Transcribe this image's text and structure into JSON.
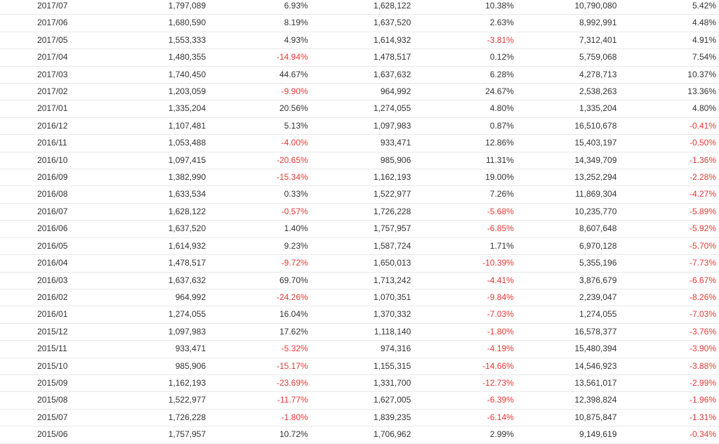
{
  "table": {
    "rows": [
      [
        "2017/07",
        "1,797,089",
        "6.93%",
        "1,628,122",
        "10.38%",
        "10,790,080",
        "5.42%"
      ],
      [
        "2017/06",
        "1,680,590",
        "8.19%",
        "1,637,520",
        "2.63%",
        "8,992,991",
        "4.48%"
      ],
      [
        "2017/05",
        "1,553,333",
        "4.93%",
        "1,614,932",
        "-3.81%",
        "7,312,401",
        "4.91%"
      ],
      [
        "2017/04",
        "1,480,355",
        "-14.94%",
        "1,478,517",
        "0.12%",
        "5,759,068",
        "7.54%"
      ],
      [
        "2017/03",
        "1,740,450",
        "44.67%",
        "1,637,632",
        "6.28%",
        "4,278,713",
        "10.37%"
      ],
      [
        "2017/02",
        "1,203,059",
        "-9.90%",
        "964,992",
        "24.67%",
        "2,538,263",
        "13.36%"
      ],
      [
        "2017/01",
        "1,335,204",
        "20.56%",
        "1,274,055",
        "4.80%",
        "1,335,204",
        "4.80%"
      ],
      [
        "2016/12",
        "1,107,481",
        "5.13%",
        "1,097,983",
        "0.87%",
        "16,510,678",
        "-0.41%"
      ],
      [
        "2016/11",
        "1,053,488",
        "-4.00%",
        "933,471",
        "12.86%",
        "15,403,197",
        "-0.50%"
      ],
      [
        "2016/10",
        "1,097,415",
        "-20.65%",
        "985,906",
        "11.31%",
        "14,349,709",
        "-1.36%"
      ],
      [
        "2016/09",
        "1,382,990",
        "-15.34%",
        "1,162,193",
        "19.00%",
        "13,252,294",
        "-2.28%"
      ],
      [
        "2016/08",
        "1,633,534",
        "0.33%",
        "1,522,977",
        "7.26%",
        "11,869,304",
        "-4.27%"
      ],
      [
        "2016/07",
        "1,628,122",
        "-0.57%",
        "1,726,228",
        "-5.68%",
        "10,235,770",
        "-5.89%"
      ],
      [
        "2016/06",
        "1,637,520",
        "1.40%",
        "1,757,957",
        "-6.85%",
        "8,607,648",
        "-5.92%"
      ],
      [
        "2016/05",
        "1,614,932",
        "9.23%",
        "1,587,724",
        "1.71%",
        "6,970,128",
        "-5.70%"
      ],
      [
        "2016/04",
        "1,478,517",
        "-9.72%",
        "1,650,013",
        "-10.39%",
        "5,355,196",
        "-7.73%"
      ],
      [
        "2016/03",
        "1,637,632",
        "69.70%",
        "1,713,242",
        "-4.41%",
        "3,876,679",
        "-6.67%"
      ],
      [
        "2016/02",
        "964,992",
        "-24.26%",
        "1,070,351",
        "-9.84%",
        "2,239,047",
        "-8.26%"
      ],
      [
        "2016/01",
        "1,274,055",
        "16.04%",
        "1,370,332",
        "-7.03%",
        "1,274,055",
        "-7.03%"
      ],
      [
        "2015/12",
        "1,097,983",
        "17.62%",
        "1,118,140",
        "-1.80%",
        "16,578,377",
        "-3.76%"
      ],
      [
        "2015/11",
        "933,471",
        "-5.32%",
        "974,316",
        "-4.19%",
        "15,480,394",
        "-3.90%"
      ],
      [
        "2015/10",
        "985,906",
        "-15.17%",
        "1,155,315",
        "-14.66%",
        "14,546,923",
        "-3.88%"
      ],
      [
        "2015/09",
        "1,162,193",
        "-23.69%",
        "1,331,700",
        "-12.73%",
        "13,561,017",
        "-2.99%"
      ],
      [
        "2015/08",
        "1,522,977",
        "-11.77%",
        "1,627,005",
        "-6.39%",
        "12,398,824",
        "-1.96%"
      ],
      [
        "2015/07",
        "1,726,228",
        "-1.80%",
        "1,839,235",
        "-6.14%",
        "10,875,847",
        "-1.31%"
      ],
      [
        "2015/06",
        "1,757,957",
        "10.72%",
        "1,706,962",
        "2.99%",
        "9,149,619",
        "-0.34%"
      ]
    ]
  },
  "colors": {
    "text": "#333333",
    "negative": "#e53935",
    "row_divider": "#e8e8e8"
  }
}
